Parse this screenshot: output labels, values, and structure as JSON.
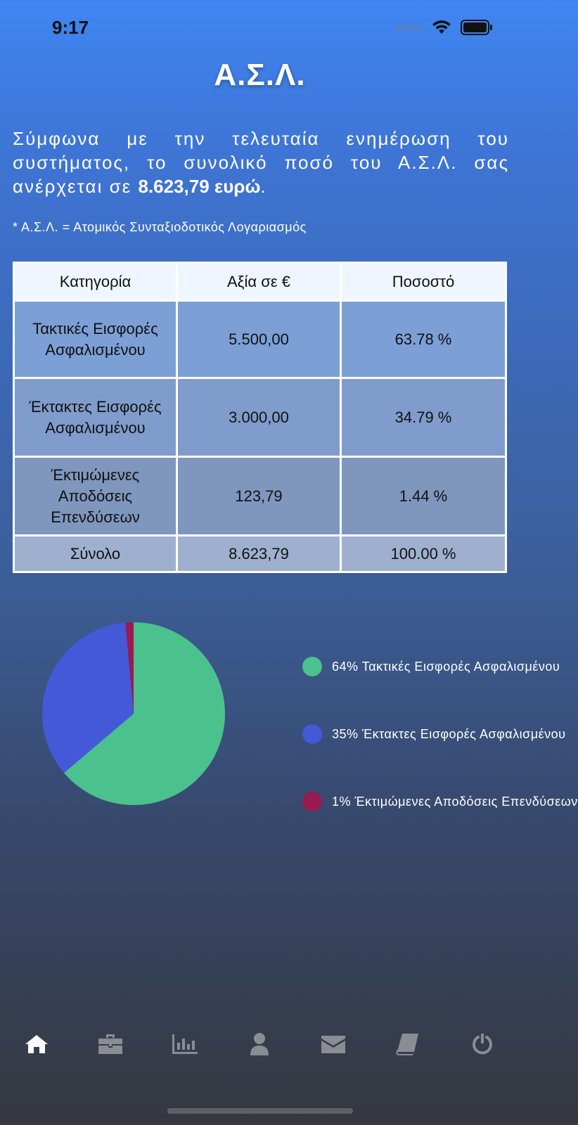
{
  "status": {
    "time": "9:17"
  },
  "header": {
    "title": "Α.Σ.Λ."
  },
  "intro": {
    "text": "Σύμφωνα με την τελευταία ενημέρωση του συστήματος, το συνολικό ποσό του Α.Σ.Λ. σας ανέρχεται σε ",
    "amount": "8.623,79 ευρώ",
    "suffix": "."
  },
  "footnote": "* Α.Σ.Λ. = Ατομικός Συνταξιοδοτικός Λογαριασμός",
  "table": {
    "headers": [
      "Κατηγορία",
      "Αξία σε €",
      "Ποσοστό"
    ],
    "rows": [
      {
        "category": "Τακτικές Εισφορές Ασφαλισμένου",
        "value": "5.500,00",
        "percent": "63.78 %"
      },
      {
        "category": "Έκτακτες Εισφορές Ασφαλισμένου",
        "value": "3.000,00",
        "percent": "34.79 %"
      },
      {
        "category": "Έκτιμώμενες Αποδόσεις Επενδύσεων",
        "value": "123,79",
        "percent": "1.44 %"
      }
    ],
    "total": {
      "category": "Σύνολο",
      "value": "8.623,79",
      "percent": "100.00 %"
    }
  },
  "chart_data": {
    "type": "pie",
    "slices": [
      {
        "label": "64% Τακτικές Εισφορές Ασφαλισμένου",
        "value": 63.78,
        "color": "#4bc18e"
      },
      {
        "label": "35% Έκτακτες Εισφορές Ασφαλισμένου",
        "value": 34.79,
        "color": "#4459d8"
      },
      {
        "label": "1% Έκτιμώμενες Αποδόσεις Επενδύσεων",
        "value": 1.44,
        "color": "#9a1a52"
      }
    ],
    "legend": "right"
  },
  "tabs": [
    {
      "icon": "home-icon",
      "active": true
    },
    {
      "icon": "briefcase-icon",
      "active": false
    },
    {
      "icon": "bar-chart-icon",
      "active": false
    },
    {
      "icon": "user-icon",
      "active": false
    },
    {
      "icon": "envelope-icon",
      "active": false
    },
    {
      "icon": "book-icon",
      "active": false
    },
    {
      "icon": "power-icon",
      "active": false
    }
  ],
  "colors": {
    "tab_active": "#ffffff",
    "tab_inactive": "#8a8d94"
  }
}
